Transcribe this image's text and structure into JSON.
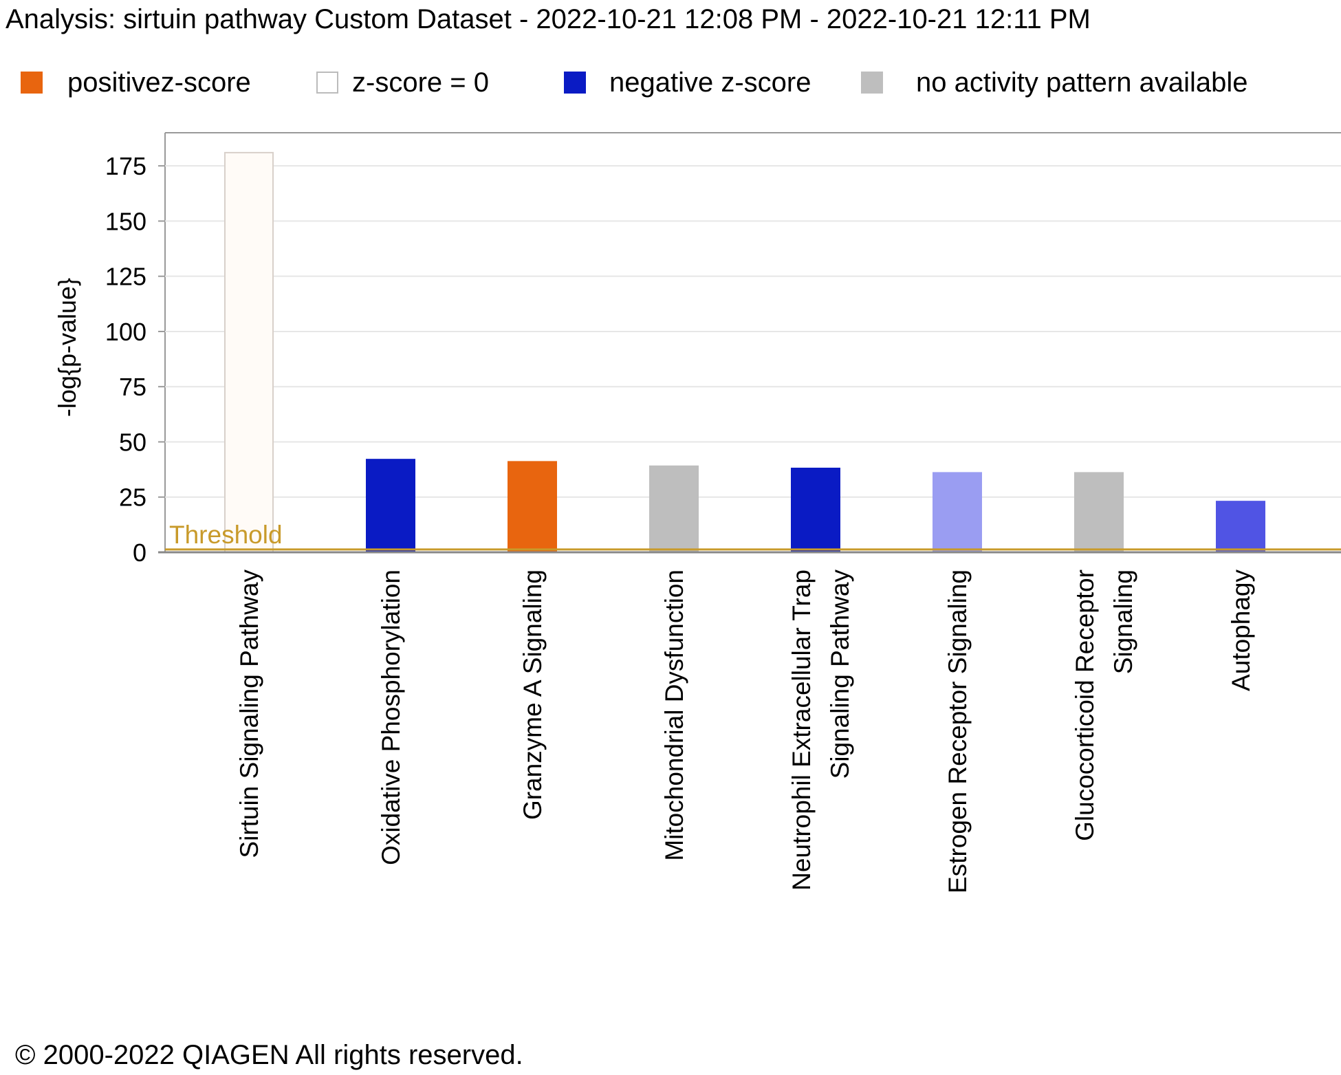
{
  "title": "Analysis: sirtuin pathway Custom Dataset - 2022-10-21 12:08 PM - 2022-10-21 12:11 PM",
  "legend": [
    {
      "label": "positivez-score",
      "color": "#E8650F",
      "border": "#E8650F"
    },
    {
      "label": "z-score = 0",
      "color": "#FFFFFF",
      "border": "#BBBBBB"
    },
    {
      "label": "negative z-score",
      "color": "#0A1BC4",
      "border": "#0A1BC4"
    },
    {
      "label": "no activity pattern available",
      "color": "#BEBEBE",
      "border": "#BEBEBE"
    }
  ],
  "footer": "© 2000-2022 QIAGEN All rights reserved.",
  "chart_data": {
    "type": "bar",
    "ylabel": "-log{p-value}",
    "ylim": [
      0,
      190
    ],
    "yticks": [
      0,
      25,
      50,
      75,
      100,
      125,
      150,
      175
    ],
    "threshold": {
      "label": "Threshold",
      "value": 1.3,
      "color": "#C89A2A"
    },
    "grid": true,
    "categories": [
      [
        "Sirtuin Signaling Pathway"
      ],
      [
        "Oxidative Phosphorylation"
      ],
      [
        "Granzyme A Signaling"
      ],
      [
        "Mitochondrial Dysfunction"
      ],
      [
        "Neutrophil Extracellular Trap",
        "Signaling Pathway"
      ],
      [
        "Estrogen Receptor Signaling"
      ],
      [
        "Glucocorticoid Receptor",
        "Signaling"
      ],
      [
        "Autophagy"
      ]
    ],
    "values": [
      181,
      42,
      41,
      39,
      38,
      36,
      36,
      23
    ],
    "colors": [
      "#FFFBF7",
      "#0A1BC4",
      "#E8650F",
      "#BEBEBE",
      "#0A1BC4",
      "#9A9DF2",
      "#BEBEBE",
      "#5054E4"
    ],
    "borders": [
      "#D8D0CA",
      "#0A1BC4",
      "#E8650F",
      "#BEBEBE",
      "#0A1BC4",
      "#9A9DF2",
      "#BEBEBE",
      "#5054E4"
    ]
  }
}
